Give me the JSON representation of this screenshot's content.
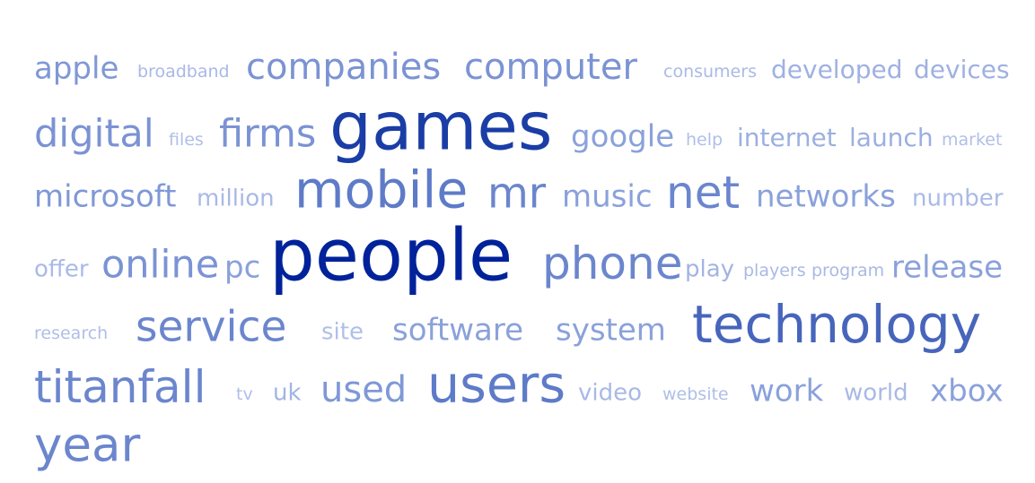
{
  "cloud": {
    "words": [
      {
        "text": "apple",
        "weight": 4,
        "color": "#7f98d6"
      },
      {
        "text": "broadband",
        "weight": 1,
        "color": "#a9b9e6"
      },
      {
        "text": "companies",
        "weight": 5,
        "color": "#7b93d4"
      },
      {
        "text": "computer",
        "weight": 5,
        "color": "#7b93d4"
      },
      {
        "text": "consumers",
        "weight": 1,
        "color": "#aabae6"
      },
      {
        "text": "developed",
        "weight": 2,
        "color": "#9fb1e2"
      },
      {
        "text": "devices",
        "weight": 2,
        "color": "#9fb1e2"
      },
      {
        "text": "digital",
        "weight": 5,
        "color": "#7b93d4"
      },
      {
        "text": "files",
        "weight": 1,
        "color": "#b0bfe8"
      },
      {
        "text": "firms",
        "weight": 5,
        "color": "#7b93d4"
      },
      {
        "text": "games",
        "weight": 9,
        "color": "#1a3da6"
      },
      {
        "text": "google",
        "weight": 3,
        "color": "#8aa1da"
      },
      {
        "text": "help",
        "weight": 1,
        "color": "#b0bfe8"
      },
      {
        "text": "internet",
        "weight": 2,
        "color": "#9cafe1"
      },
      {
        "text": "launch",
        "weight": 2,
        "color": "#9cafe1"
      },
      {
        "text": "market",
        "weight": 1,
        "color": "#b0bfe8"
      },
      {
        "text": "microsoft",
        "weight": 3,
        "color": "#7f98d6"
      },
      {
        "text": "million",
        "weight": 2,
        "color": "#a9b9e6"
      },
      {
        "text": "mobile",
        "weight": 7,
        "color": "#5e7bc8"
      },
      {
        "text": "mr",
        "weight": 6,
        "color": "#6b86cd"
      },
      {
        "text": "music",
        "weight": 3,
        "color": "#8aa1da"
      },
      {
        "text": "net",
        "weight": 6,
        "color": "#6b86cd"
      },
      {
        "text": "networks",
        "weight": 3,
        "color": "#8aa1da"
      },
      {
        "text": "number",
        "weight": 2,
        "color": "#aabae6"
      },
      {
        "text": "offer",
        "weight": 2,
        "color": "#aabae6"
      },
      {
        "text": "online",
        "weight": 5,
        "color": "#7b93d4"
      },
      {
        "text": "pc",
        "weight": 3,
        "color": "#8aa1da"
      },
      {
        "text": "people",
        "weight": 10,
        "color": "#00229a"
      },
      {
        "text": "phone",
        "weight": 6,
        "color": "#6b86cd"
      },
      {
        "text": "play",
        "weight": 2,
        "color": "#a2b4e3"
      },
      {
        "text": "players",
        "weight": 1,
        "color": "#a9b9e6"
      },
      {
        "text": "program",
        "weight": 1,
        "color": "#a9b9e6"
      },
      {
        "text": "release",
        "weight": 3,
        "color": "#8aa1da"
      },
      {
        "text": "research",
        "weight": 1,
        "color": "#b0bfe8"
      },
      {
        "text": "service",
        "weight": 6,
        "color": "#6b86cd"
      },
      {
        "text": "site",
        "weight": 2,
        "color": "#b0bfe8"
      },
      {
        "text": "software",
        "weight": 3,
        "color": "#8aa1da"
      },
      {
        "text": "system",
        "weight": 3,
        "color": "#8aa1da"
      },
      {
        "text": "technology",
        "weight": 8,
        "color": "#4765bb"
      },
      {
        "text": "titanfall",
        "weight": 6,
        "color": "#6b86cd"
      },
      {
        "text": "tv",
        "weight": 1,
        "color": "#b0bfe8"
      },
      {
        "text": "uk",
        "weight": 2,
        "color": "#a2b4e3"
      },
      {
        "text": "used",
        "weight": 4,
        "color": "#7f98d6"
      },
      {
        "text": "users",
        "weight": 7,
        "color": "#5e7bc8"
      },
      {
        "text": "video",
        "weight": 2,
        "color": "#a9b9e6"
      },
      {
        "text": "website",
        "weight": 1,
        "color": "#b0bfe8"
      },
      {
        "text": "work",
        "weight": 3,
        "color": "#8aa1da"
      },
      {
        "text": "world",
        "weight": 2,
        "color": "#a9b9e6"
      },
      {
        "text": "xbox",
        "weight": 3,
        "color": "#8aa1da"
      },
      {
        "text": "year",
        "weight": 6,
        "color": "#6b86cd"
      }
    ]
  }
}
